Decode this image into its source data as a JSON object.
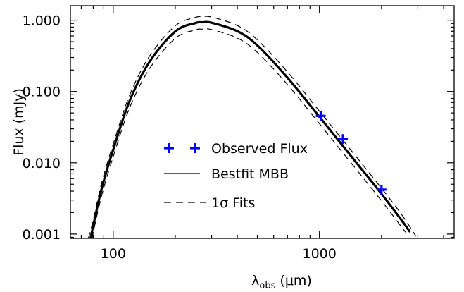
{
  "chart_data": {
    "type": "line",
    "title": "",
    "xlabel": "λ",
    "xlabel_sub": "obs",
    "xlabel_unit": "(μm)",
    "ylabel": "Flux (mJy)",
    "x_scale": "log",
    "y_scale": "log",
    "xlim": [
      62,
      4500
    ],
    "ylim": [
      0.00087,
      1.6
    ],
    "x_ticks": [
      100,
      1000
    ],
    "x_tick_labels": [
      "100",
      "1000"
    ],
    "y_ticks": [
      0.001,
      0.01,
      0.1,
      1.0
    ],
    "y_tick_labels": [
      "0.001",
      "0.010",
      "0.100",
      "1.000"
    ],
    "grid": false,
    "legend_position": "center-left",
    "legend": [
      {
        "label": "Observed Flux",
        "marker": "plus"
      },
      {
        "label": "Bestfit MBB",
        "line": "solid"
      },
      {
        "label": "1σ Fits",
        "line": "dashed"
      }
    ],
    "colors": {
      "observed": "#0000ff",
      "bestfit": "#000000",
      "fits": "#000000"
    },
    "series": [
      {
        "role": "bestfit",
        "x": [
          77.6,
          80,
          85,
          90,
          100,
          120,
          150,
          200,
          250,
          270,
          300,
          400,
          500,
          700,
          1000,
          1500,
          2000,
          2500,
          2750
        ],
        "y": [
          0.00087,
          0.00131,
          0.00291,
          0.00558,
          0.0153,
          0.0735,
          0.261,
          0.697,
          0.912,
          0.936,
          0.923,
          0.702,
          0.442,
          0.156,
          0.0441,
          0.0103,
          0.00366,
          0.00157,
          0.00107
        ]
      },
      {
        "role": "fit_upper",
        "x": [
          75.7,
          80,
          85,
          90,
          100,
          120,
          150,
          200,
          250,
          270,
          300,
          400,
          500,
          700,
          1000,
          1500,
          2000,
          2500,
          2940
        ],
        "y": [
          0.00087,
          0.00157,
          0.00349,
          0.0067,
          0.0183,
          0.0882,
          0.313,
          0.836,
          1.094,
          1.123,
          1.108,
          0.842,
          0.53,
          0.188,
          0.0529,
          0.0124,
          0.00439,
          0.00189,
          0.00093
        ]
      },
      {
        "role": "fit_lower",
        "x": [
          79.2,
          80,
          85,
          90,
          100,
          120,
          150,
          200,
          250,
          270,
          300,
          400,
          500,
          700,
          1000,
          1500,
          2000,
          2500,
          2618
        ],
        "y": [
          0.00087,
          0.00105,
          0.00233,
          0.00446,
          0.0122,
          0.0588,
          0.209,
          0.557,
          0.73,
          0.749,
          0.738,
          0.561,
          0.353,
          0.125,
          0.0353,
          0.00826,
          0.00293,
          0.00126,
          0.00106
        ]
      },
      {
        "role": "observed",
        "x": [
          1015,
          1300,
          2000
        ],
        "y": [
          0.0455,
          0.0215,
          0.0042
        ]
      }
    ]
  }
}
